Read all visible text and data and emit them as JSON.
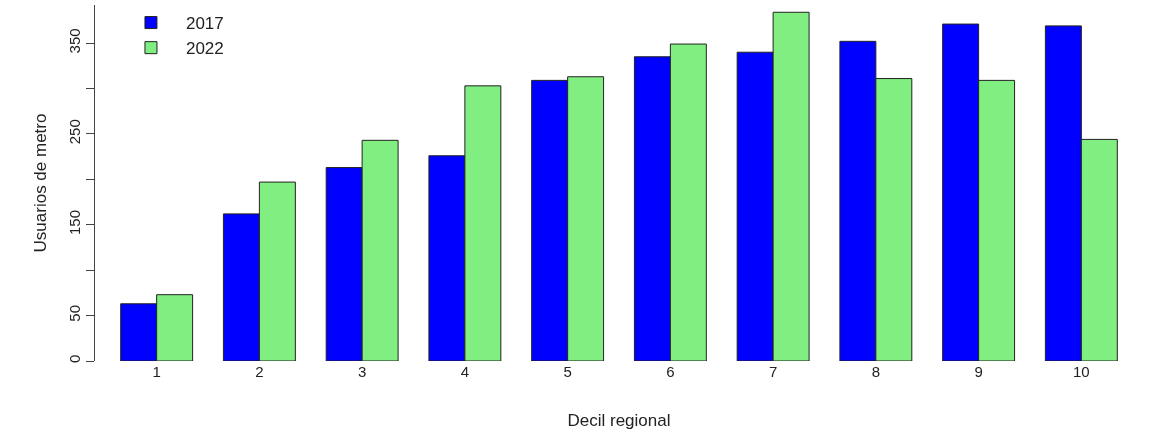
{
  "chart_data": {
    "type": "bar",
    "xlabel": "Decil regional",
    "ylabel": "Usuarios de metro",
    "categories": [
      "1",
      "2",
      "3",
      "4",
      "5",
      "6",
      "7",
      "8",
      "9",
      "10"
    ],
    "series": [
      {
        "name": "2017",
        "color": "#0000ff",
        "values": [
          63,
          162,
          213,
          226,
          309,
          335,
          340,
          352,
          371,
          369
        ]
      },
      {
        "name": "2022",
        "color": "#80ee80",
        "values": [
          73,
          197,
          243,
          303,
          313,
          349,
          384,
          311,
          309,
          244
        ]
      }
    ],
    "ylim": [
      0,
      392
    ],
    "yticks": [
      0,
      50,
      {
        "value": 100,
        "label": null
      },
      150,
      {
        "value": 200,
        "label": null
      },
      250,
      {
        "value": 300,
        "label": null
      },
      350
    ],
    "legend": "top left"
  }
}
